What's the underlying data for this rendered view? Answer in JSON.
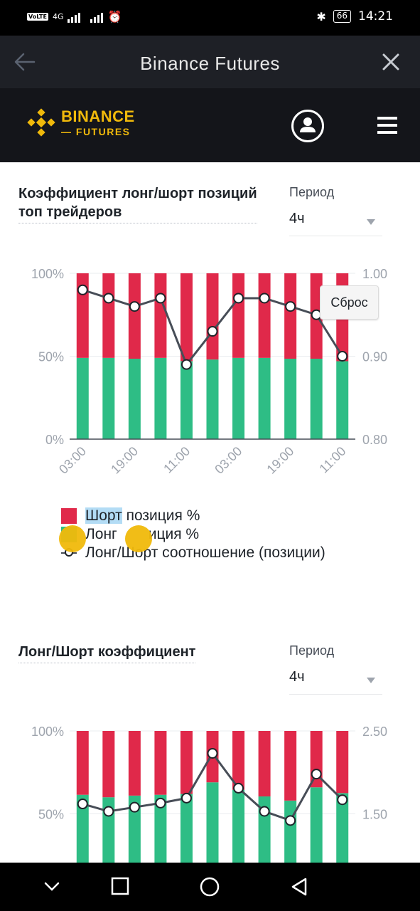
{
  "status": {
    "volte": "VoLTE",
    "net": "4G",
    "battery": "66",
    "time": "14:21"
  },
  "app_bar": {
    "title": "Binance Futures"
  },
  "brand": {
    "line1": "BINANCE",
    "line2": "FUTURES",
    "accent": "#f0b90b"
  },
  "section1": {
    "title_line1": "Коэффициент лонг/шорт позиций",
    "title_line2": "топ трейдеров",
    "period_label": "Период",
    "period_value": "4ч"
  },
  "section2": {
    "title": "Лонг/Шорт коэффициент",
    "period_label": "Период",
    "period_value": "4ч"
  },
  "reset_label": "Сброс",
  "legend": {
    "short": "Шорт позиция %",
    "short_highlight": "Шорт",
    "short_rest": " позиция %",
    "long": "Лонг позиция %",
    "long_visible_a": "Лонг",
    "long_visible_b": "иция %",
    "ratio": "Лонг/Шорт соотношение (позиции)"
  },
  "colors": {
    "short": "#e0294a",
    "long": "#2ebd85",
    "line": "#474d57",
    "grid": "#eaecef",
    "axis_text": "#9ea4ad"
  },
  "chart_data": [
    {
      "type": "bar",
      "title": "Коэффициент лонг/шорт позиций топ трейдеров",
      "x_tick_labels": [
        "03:00",
        "19:00",
        "11:00",
        "03:00",
        "19:00",
        "11:00"
      ],
      "x_tick_every": 2,
      "left_axis": {
        "ticks": [
          "100%",
          "50%",
          "0%"
        ],
        "ylim": [
          0,
          100
        ]
      },
      "right_axis": {
        "ticks": [
          "1.00",
          "0.90",
          "0.80"
        ],
        "ylim": [
          0.8,
          1.0
        ]
      },
      "series": [
        {
          "name": "Шорт позиция %",
          "values": [
            51,
            51,
            51.5,
            51,
            53,
            52,
            51,
            51,
            51.5,
            51.5,
            53
          ]
        },
        {
          "name": "Лонг позиция %",
          "values": [
            49,
            49,
            48.5,
            49,
            47,
            48,
            49,
            49,
            48.5,
            48.5,
            47
          ]
        },
        {
          "name": "Лонг/Шорт соотношение (позиции)",
          "axis": "right",
          "values": [
            0.98,
            0.97,
            0.96,
            0.97,
            0.89,
            0.93,
            0.97,
            0.97,
            0.96,
            0.95,
            0.9
          ]
        }
      ]
    },
    {
      "type": "bar",
      "title": "Лонг/Шорт коэффициент",
      "left_axis": {
        "ticks": [
          "100%",
          "50%"
        ],
        "ylim": [
          0,
          100
        ]
      },
      "right_axis": {
        "ticks": [
          "2.50",
          "1.50"
        ],
        "ylim": [
          0.5,
          2.5
        ]
      },
      "series": [
        {
          "name": "Шорт позиция %",
          "values": [
            38.5,
            40,
            39,
            38.5,
            38,
            31,
            35.5,
            39.5,
            42,
            34,
            37.5
          ]
        },
        {
          "name": "Лонг позиция %",
          "values": [
            61.5,
            60,
            61,
            61.5,
            62,
            69,
            64.5,
            60.5,
            58,
            66,
            62.5
          ]
        },
        {
          "name": "Лонг/Шорт соотношение",
          "axis": "right",
          "values": [
            1.62,
            1.53,
            1.58,
            1.63,
            1.69,
            2.23,
            1.81,
            1.53,
            1.42,
            1.98,
            1.67
          ]
        }
      ]
    }
  ]
}
